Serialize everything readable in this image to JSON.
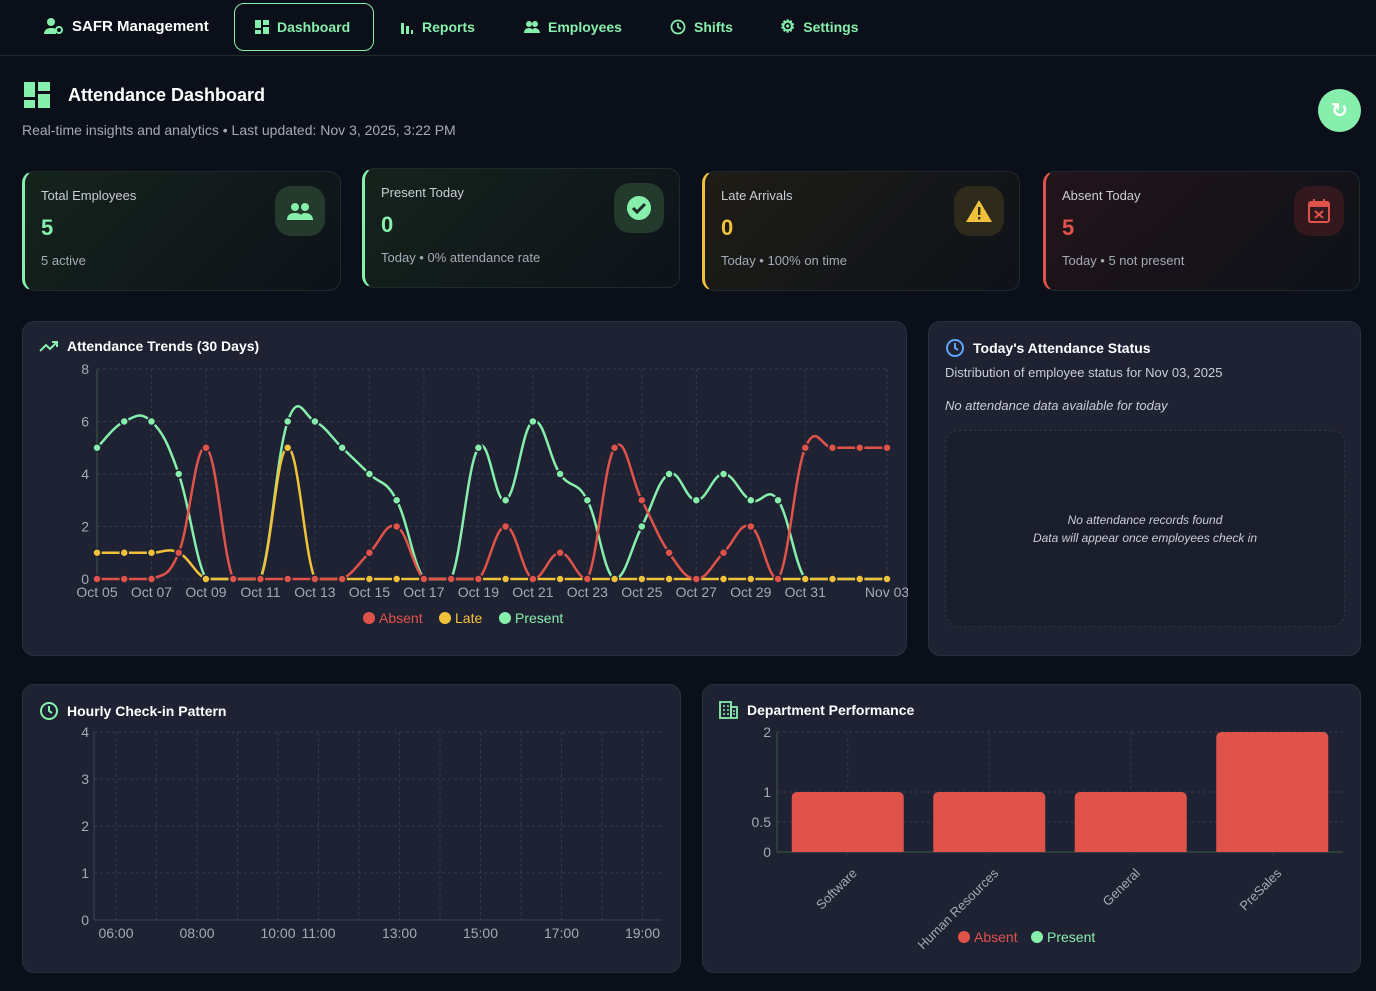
{
  "nav": {
    "brand": "SAFR Management",
    "items": [
      {
        "label": "Dashboard",
        "icon": "dashboard-icon",
        "active": true
      },
      {
        "label": "Reports",
        "icon": "bar-chart-icon"
      },
      {
        "label": "Employees",
        "icon": "people-icon"
      },
      {
        "label": "Shifts",
        "icon": "clock-icon"
      },
      {
        "label": "Settings",
        "icon": "gear-icon"
      }
    ]
  },
  "header": {
    "title": "Attendance Dashboard",
    "subtitle": "Real-time insights and analytics • Last updated: Nov 3, 2025, 3:22 PM"
  },
  "cards": [
    {
      "label": "Total Employees",
      "value": "5",
      "foot": "5 active",
      "color": "#86efac",
      "icon": "people-icon"
    },
    {
      "label": "Present Today",
      "value": "0",
      "foot": "Today • 0% attendance rate",
      "color": "#86efac",
      "icon": "check-circle-icon"
    },
    {
      "label": "Late Arrivals",
      "value": "0",
      "foot": "Today • 100% on time",
      "color": "#f0c23a",
      "icon": "warning-icon"
    },
    {
      "label": "Absent Today",
      "value": "5",
      "foot": "Today • 5 not present",
      "color": "#e0534a",
      "icon": "calendar-x-icon"
    }
  ],
  "colors": {
    "absent": "#e0534a",
    "late": "#f0c23a",
    "present": "#86efac"
  },
  "trends": {
    "title": "Attendance Trends (30 Days)"
  },
  "status": {
    "title": "Today's Attendance Status",
    "subtitle": "Distribution of employee status for Nov 03, 2025",
    "note": "No attendance data available for today",
    "empty1": "No attendance records found",
    "empty2": "Data will appear once employees check in"
  },
  "hourly": {
    "title": "Hourly Check-in Pattern"
  },
  "dept": {
    "title": "Department Performance"
  },
  "chart_data": [
    {
      "type": "line",
      "title": "Attendance Trends (30 Days)",
      "ylim": [
        0,
        8
      ],
      "yticks": [
        0,
        2,
        4,
        6,
        8
      ],
      "grid": true,
      "legend": "bottom",
      "x": [
        "Oct 05",
        "Oct 06",
        "Oct 07",
        "Oct 08",
        "Oct 09",
        "Oct 10",
        "Oct 11",
        "Oct 12",
        "Oct 13",
        "Oct 14",
        "Oct 15",
        "Oct 16",
        "Oct 17",
        "Oct 18",
        "Oct 19",
        "Oct 20",
        "Oct 21",
        "Oct 22",
        "Oct 23",
        "Oct 24",
        "Oct 25",
        "Oct 26",
        "Oct 27",
        "Oct 28",
        "Oct 29",
        "Oct 30",
        "Oct 31",
        "Nov 01",
        "Nov 02",
        "Nov 03"
      ],
      "xticks": [
        "Oct 05",
        "Oct 07",
        "Oct 09",
        "Oct 11",
        "Oct 13",
        "Oct 15",
        "Oct 17",
        "Oct 19",
        "Oct 21",
        "Oct 23",
        "Oct 25",
        "Oct 27",
        "Oct 29",
        "Oct 31",
        "Nov 03"
      ],
      "series": [
        {
          "name": "Absent",
          "values": [
            0,
            0,
            0,
            1,
            5,
            0,
            0,
            0,
            0,
            0,
            1,
            2,
            0,
            0,
            0,
            2,
            0,
            1,
            0,
            5,
            3,
            1,
            0,
            1,
            2,
            0,
            5,
            5,
            5,
            5
          ]
        },
        {
          "name": "Late",
          "values": [
            1,
            1,
            1,
            1,
            0,
            0,
            0,
            5,
            0,
            0,
            0,
            0,
            0,
            0,
            0,
            0,
            0,
            0,
            0,
            0,
            0,
            0,
            0,
            0,
            0,
            0,
            0,
            0,
            0,
            0
          ]
        },
        {
          "name": "Present",
          "values": [
            5,
            6,
            6,
            4,
            0,
            0,
            0,
            6,
            6,
            5,
            4,
            3,
            0,
            0,
            5,
            3,
            6,
            4,
            3,
            0,
            2,
            4,
            3,
            4,
            3,
            3,
            0,
            0,
            0,
            0
          ]
        }
      ]
    },
    {
      "type": "bar",
      "title": "Hourly Check-in Pattern",
      "ylim": [
        0,
        4
      ],
      "yticks": [
        0,
        1,
        2,
        3,
        4
      ],
      "xticks": [
        "06:00",
        "08:00",
        "10:00",
        "11:00",
        "13:00",
        "15:00",
        "17:00",
        "19:00"
      ],
      "grid": true,
      "series": []
    },
    {
      "type": "bar",
      "title": "Department Performance",
      "categories": [
        "Software",
        "Human Resources",
        "General",
        "PreSales"
      ],
      "ylim": [
        0,
        2
      ],
      "yticks": [
        0,
        0.5,
        1,
        2
      ],
      "grid": true,
      "legend": "bottom",
      "series": [
        {
          "name": "Absent",
          "values": [
            1,
            1,
            1,
            2
          ]
        },
        {
          "name": "Present",
          "values": [
            0,
            0,
            0,
            0
          ]
        }
      ]
    }
  ]
}
